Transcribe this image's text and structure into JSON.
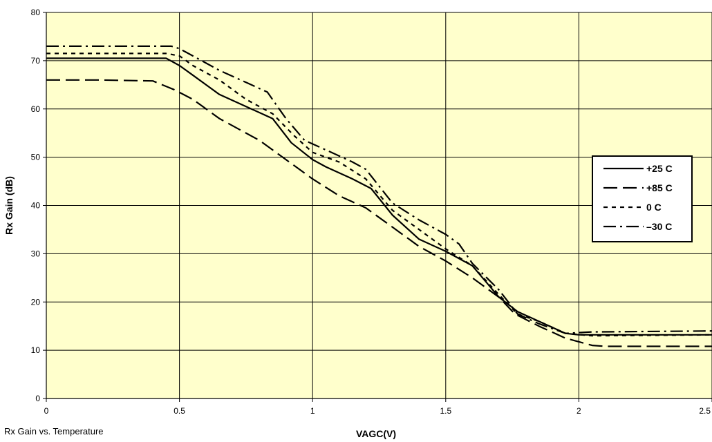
{
  "caption": "Rx Gain vs. Temperature",
  "chart_data": {
    "type": "line",
    "title": "",
    "xlabel": "VAGC(V)",
    "ylabel": "Rx Gain (dB)",
    "xlim": [
      0,
      2.5
    ],
    "ylim": [
      0,
      80
    ],
    "xticks": [
      0,
      0.5,
      1,
      1.5,
      2,
      2.5
    ],
    "xtick_labels": [
      "0",
      "0.5",
      "1",
      "1.5",
      "2",
      "2.5"
    ],
    "yticks": [
      0,
      10,
      20,
      30,
      40,
      50,
      60,
      70,
      80
    ],
    "ytick_labels": [
      "0",
      "10",
      "20",
      "30",
      "40",
      "50",
      "60",
      "70",
      "80"
    ],
    "grid": true,
    "background_color": "#FFFFCC",
    "line_color": "#000000",
    "legend_position": "right",
    "series": [
      {
        "name": "+25 C",
        "style": "solid",
        "points": [
          [
            0,
            70.5
          ],
          [
            0.45,
            70.5
          ],
          [
            0.5,
            69
          ],
          [
            0.55,
            67
          ],
          [
            0.65,
            63
          ],
          [
            0.75,
            60.5
          ],
          [
            0.85,
            58
          ],
          [
            0.92,
            53
          ],
          [
            1.0,
            49.5
          ],
          [
            1.05,
            48
          ],
          [
            1.15,
            45.5
          ],
          [
            1.22,
            43.5
          ],
          [
            1.3,
            38
          ],
          [
            1.4,
            33
          ],
          [
            1.5,
            30.5
          ],
          [
            1.6,
            27.5
          ],
          [
            1.7,
            21
          ],
          [
            1.77,
            18
          ],
          [
            1.85,
            16
          ],
          [
            1.95,
            13.5
          ],
          [
            2.0,
            13.2
          ],
          [
            2.5,
            13.2
          ]
        ]
      },
      {
        "name": "+85 C",
        "style": "long-dash",
        "points": [
          [
            0,
            66
          ],
          [
            0.2,
            66
          ],
          [
            0.4,
            65.8
          ],
          [
            0.48,
            64
          ],
          [
            0.55,
            62
          ],
          [
            0.65,
            58
          ],
          [
            0.8,
            53.5
          ],
          [
            0.9,
            49.5
          ],
          [
            1.0,
            45.5
          ],
          [
            1.1,
            42
          ],
          [
            1.2,
            39.5
          ],
          [
            1.3,
            35.5
          ],
          [
            1.4,
            31.5
          ],
          [
            1.5,
            28.5
          ],
          [
            1.6,
            25
          ],
          [
            1.7,
            21
          ],
          [
            1.76,
            17.5
          ],
          [
            1.85,
            15
          ],
          [
            1.95,
            12.5
          ],
          [
            2.05,
            11
          ],
          [
            2.1,
            10.8
          ],
          [
            2.5,
            10.8
          ]
        ]
      },
      {
        "name": "0 C",
        "style": "short-dash",
        "points": [
          [
            0,
            71.5
          ],
          [
            0.45,
            71.5
          ],
          [
            0.5,
            71
          ],
          [
            0.55,
            69
          ],
          [
            0.65,
            66
          ],
          [
            0.75,
            62
          ],
          [
            0.85,
            59
          ],
          [
            0.93,
            54.5
          ],
          [
            1.0,
            51
          ],
          [
            1.1,
            49
          ],
          [
            1.2,
            45.5
          ],
          [
            1.3,
            39
          ],
          [
            1.4,
            35
          ],
          [
            1.5,
            31
          ],
          [
            1.6,
            27.5
          ],
          [
            1.7,
            21.5
          ],
          [
            1.77,
            17.5
          ],
          [
            1.85,
            16
          ],
          [
            1.95,
            13.5
          ],
          [
            2.05,
            13
          ],
          [
            2.5,
            13.2
          ]
        ]
      },
      {
        "name": "–30 C",
        "style": "dash-dot",
        "points": [
          [
            0,
            73
          ],
          [
            0.47,
            73
          ],
          [
            0.5,
            72.5
          ],
          [
            0.55,
            71
          ],
          [
            0.65,
            68
          ],
          [
            0.75,
            65.5
          ],
          [
            0.83,
            63.5
          ],
          [
            0.9,
            58
          ],
          [
            0.97,
            53.5
          ],
          [
            1.05,
            51.5
          ],
          [
            1.15,
            49
          ],
          [
            1.2,
            47.5
          ],
          [
            1.3,
            40.5
          ],
          [
            1.4,
            37
          ],
          [
            1.5,
            34
          ],
          [
            1.55,
            32
          ],
          [
            1.6,
            28
          ],
          [
            1.7,
            22.5
          ],
          [
            1.77,
            17.5
          ],
          [
            1.85,
            15.5
          ],
          [
            1.95,
            13.5
          ],
          [
            2.05,
            13.8
          ],
          [
            2.5,
            14
          ]
        ]
      }
    ]
  }
}
